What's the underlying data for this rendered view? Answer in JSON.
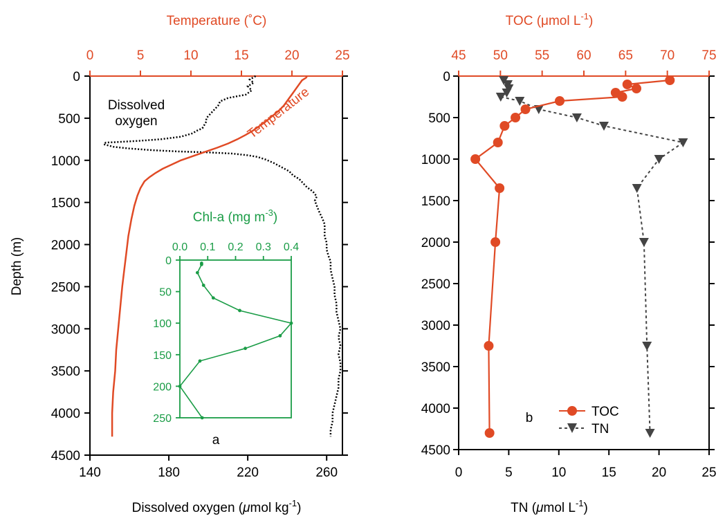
{
  "colors": {
    "temperature": "#e04a25",
    "oxygen": "#000000",
    "chl": "#1a9c46",
    "toc": "#e04a25",
    "tn": "#444444",
    "axis": "#000000"
  },
  "chart_data": [
    {
      "panel_label": "a",
      "type": "line",
      "ylabel": "Depth (m)",
      "ylim": [
        4500,
        0
      ],
      "yticks": [
        0,
        500,
        1000,
        1500,
        2000,
        2500,
        3000,
        3500,
        4000,
        4500
      ],
      "top_axis": {
        "label": "Temperature (˚C)",
        "lim": [
          0,
          25
        ],
        "ticks": [
          0,
          5,
          10,
          15,
          20,
          25
        ]
      },
      "bottom_axis": {
        "label_main": "Dissolved oxygen (",
        "label_mu": "μ",
        "label_unit": "mol kg",
        "label_exp": "-1",
        "label_close": ")",
        "lim": [
          140,
          268
        ],
        "ticks": [
          140,
          180,
          220,
          260
        ]
      },
      "series": [
        {
          "name": "Dissolved oxygen",
          "name_line1": "Dissolved",
          "name_line2": "oxygen",
          "axis": "bottom",
          "style": "dotted",
          "points": [
            [
              224,
              0
            ],
            [
              221,
              40
            ],
            [
              223,
              80
            ],
            [
              220,
              120
            ],
            [
              222,
              170
            ],
            [
              219,
              220
            ],
            [
              210,
              260
            ],
            [
              206,
              300
            ],
            [
              205,
              350
            ],
            [
              203,
              400
            ],
            [
              201,
              450
            ],
            [
              199,
              500
            ],
            [
              199,
              540
            ],
            [
              198,
              580
            ],
            [
              197,
              620
            ],
            [
              194,
              650
            ],
            [
              192,
              680
            ],
            [
              186,
              720
            ],
            [
              176,
              750
            ],
            [
              164,
              770
            ],
            [
              156,
              780
            ],
            [
              148,
              790
            ],
            [
              147,
              810
            ],
            [
              152,
              840
            ],
            [
              160,
              860
            ],
            [
              172,
              880
            ],
            [
              185,
              895
            ],
            [
              199,
              905
            ],
            [
              212,
              920
            ],
            [
              220,
              940
            ],
            [
              225,
              960
            ],
            [
              229,
              990
            ],
            [
              233,
              1030
            ],
            [
              237,
              1080
            ],
            [
              241,
              1130
            ],
            [
              243,
              1180
            ],
            [
              246,
              1220
            ],
            [
              248,
              1270
            ],
            [
              250,
              1320
            ],
            [
              253,
              1370
            ],
            [
              255,
              1430
            ],
            [
              254,
              1480
            ],
            [
              255,
              1540
            ],
            [
              256,
              1600
            ],
            [
              257,
              1650
            ],
            [
              258,
              1700
            ],
            [
              259,
              1760
            ],
            [
              259,
              1830
            ],
            [
              259,
              1900
            ],
            [
              260,
              1980
            ],
            [
              260,
              2060
            ],
            [
              261,
              2140
            ],
            [
              262,
              2200
            ],
            [
              262,
              2300
            ],
            [
              263,
              2400
            ],
            [
              264,
              2500
            ],
            [
              264,
              2600
            ],
            [
              265,
              2700
            ],
            [
              265,
              2800
            ],
            [
              266,
              2900
            ],
            [
              267,
              3000
            ],
            [
              266,
              3100
            ],
            [
              267,
              3200
            ],
            [
              266,
              3300
            ],
            [
              267,
              3400
            ],
            [
              267,
              3500
            ],
            [
              266,
              3600
            ],
            [
              266,
              3700
            ],
            [
              265,
              3800
            ],
            [
              264,
              3900
            ],
            [
              263,
              4000
            ],
            [
              263,
              4100
            ],
            [
              262,
              4200
            ],
            [
              262,
              4280
            ]
          ]
        },
        {
          "name": "Temperature",
          "axis": "top",
          "style": "solid",
          "points": [
            [
              21.5,
              0
            ],
            [
              21.4,
              20
            ],
            [
              21.0,
              50
            ],
            [
              20.7,
              100
            ],
            [
              20.4,
              150
            ],
            [
              20.1,
              200
            ],
            [
              19.8,
              250
            ],
            [
              19.5,
              300
            ],
            [
              19.2,
              350
            ],
            [
              18.8,
              400
            ],
            [
              18.3,
              450
            ],
            [
              17.8,
              500
            ],
            [
              17.3,
              550
            ],
            [
              16.7,
              600
            ],
            [
              16.1,
              650
            ],
            [
              15.4,
              700
            ],
            [
              14.6,
              750
            ],
            [
              13.7,
              800
            ],
            [
              12.6,
              850
            ],
            [
              11.4,
              900
            ],
            [
              10.2,
              950
            ],
            [
              9.0,
              1000
            ],
            [
              8.1,
              1050
            ],
            [
              7.2,
              1100
            ],
            [
              6.5,
              1150
            ],
            [
              5.9,
              1200
            ],
            [
              5.4,
              1250
            ],
            [
              5.0,
              1330
            ],
            [
              4.7,
              1420
            ],
            [
              4.4,
              1540
            ],
            [
              4.1,
              1700
            ],
            [
              3.8,
              1900
            ],
            [
              3.6,
              2100
            ],
            [
              3.4,
              2300
            ],
            [
              3.2,
              2500
            ],
            [
              3.0,
              2750
            ],
            [
              2.8,
              3000
            ],
            [
              2.6,
              3250
            ],
            [
              2.5,
              3500
            ],
            [
              2.3,
              3750
            ],
            [
              2.2,
              4000
            ],
            [
              2.2,
              4280
            ]
          ]
        }
      ],
      "inset": {
        "type": "line",
        "xlabel_main": "Chl-a (mg m",
        "xlabel_exp": "-3",
        "xlabel_close": ")",
        "xlim": [
          0.0,
          0.4
        ],
        "xticks": [
          "0.0",
          "0.1",
          "0.2",
          "0.3",
          "0.4"
        ],
        "ylim": [
          250,
          0
        ],
        "yticks": [
          0,
          50,
          100,
          150,
          200,
          250
        ],
        "points": [
          [
            0.078,
            5
          ],
          [
            0.078,
            7
          ],
          [
            0.063,
            20
          ],
          [
            0.085,
            40
          ],
          [
            0.12,
            60
          ],
          [
            0.215,
            80
          ],
          [
            0.4,
            100
          ],
          [
            0.36,
            120
          ],
          [
            0.235,
            140
          ],
          [
            0.072,
            160
          ],
          [
            0.0,
            200
          ],
          [
            0.08,
            250
          ]
        ]
      }
    },
    {
      "panel_label": "b",
      "type": "line",
      "ylim": [
        4500,
        0
      ],
      "yticks": [
        0,
        500,
        1000,
        1500,
        2000,
        2500,
        3000,
        3500,
        4000,
        4500
      ],
      "top_axis": {
        "label_main": "TOC (μmol L",
        "label_exp": "-1",
        "label_close": ")",
        "lim": [
          45,
          75
        ],
        "ticks": [
          45,
          50,
          55,
          60,
          65,
          70,
          75
        ]
      },
      "bottom_axis": {
        "label_main": "TN (",
        "label_mu": "μ",
        "label_unit": "mol L",
        "label_exp": "-1",
        "label_close": ")",
        "lim": [
          0,
          25
        ],
        "ticks": [
          0,
          5,
          10,
          15,
          20,
          25
        ]
      },
      "series": [
        {
          "name": "TOC",
          "axis": "top",
          "style": "solid",
          "marker": "circle",
          "points": [
            [
              70.3,
              50
            ],
            [
              65.2,
              100
            ],
            [
              66.3,
              150
            ],
            [
              63.8,
              200
            ],
            [
              64.6,
              250
            ],
            [
              57.1,
              300
            ],
            [
              53.0,
              400
            ],
            [
              51.8,
              500
            ],
            [
              50.5,
              600
            ],
            [
              49.7,
              800
            ],
            [
              47.0,
              1000
            ],
            [
              49.9,
              1350
            ],
            [
              49.4,
              2000
            ],
            [
              48.6,
              3250
            ],
            [
              48.7,
              4300
            ]
          ]
        },
        {
          "name": "TN",
          "axis": "bottom",
          "style": "dashed",
          "marker": "triangle-down",
          "points": [
            [
              4.5,
              50
            ],
            [
              4.9,
              100
            ],
            [
              5.0,
              150
            ],
            [
              4.8,
              200
            ],
            [
              4.2,
              250
            ],
            [
              6.1,
              300
            ],
            [
              8.0,
              400
            ],
            [
              11.8,
              500
            ],
            [
              14.5,
              600
            ],
            [
              22.4,
              800
            ],
            [
              20.0,
              1000
            ],
            [
              17.8,
              1350
            ],
            [
              18.5,
              2000
            ],
            [
              18.8,
              3250
            ],
            [
              19.1,
              4300
            ]
          ]
        }
      ]
    }
  ]
}
